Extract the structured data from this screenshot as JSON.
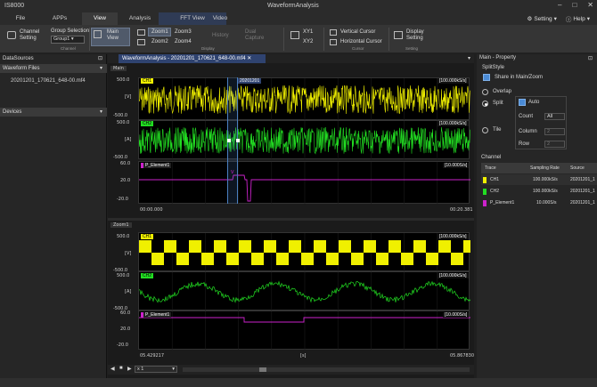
{
  "window": {
    "app_title": "IS8000",
    "title": "WaveformAnalysis"
  },
  "menu": {
    "tabs": [
      "File",
      "APPs",
      "View",
      "Analysis",
      "FFT View",
      "Video"
    ],
    "active": "View",
    "right": {
      "setting": "Setting",
      "help": "Help"
    }
  },
  "ribbon": {
    "channel_setting": "Channel Setting",
    "group_selection": "Group Selection",
    "group_value": "Group1",
    "main_view": "Main View",
    "zoom1": "Zoom1",
    "zoom2": "Zoom2",
    "zoom3": "Zoom3",
    "zoom4": "Zoom4",
    "history": "History",
    "dual_capture": "Dual Capture",
    "xy1": "XY1",
    "xy2": "XY2",
    "vertical_cursor": "Vertical Cursor",
    "horizontal_cursor": "Horizontal Cursor",
    "display_setting": "Display Setting",
    "groups": {
      "channel": "Channel",
      "display": "Display",
      "cursor": "Cursor",
      "setting": "Setting"
    }
  },
  "left_panel": {
    "title": "DataSources",
    "waveform_files_label": "Waveform Files",
    "file": "20201201_170621_648-00.mf4",
    "devices_label": "Devices"
  },
  "document_tab": "WaveformAnalysis - 20201201_170621_648-00.mf4",
  "main_view": {
    "label": "Main",
    "ch1": {
      "name": "CH1",
      "top": "500.0",
      "unit": "[V]",
      "bottom": "-500.0",
      "rate": "[100.000kS/s]",
      "cursor_tag": "20201201"
    },
    "ch2": {
      "name": "CH2",
      "top": "500.0",
      "unit": "[A]",
      "bottom": "-500.0",
      "rate": "[100.000kS/s]"
    },
    "p1": {
      "name": "P_Element1",
      "top": "60.0",
      "mid": "20.0",
      "bottom": "-20.0",
      "rate": "[10.000S/s]",
      "marker": "V"
    },
    "time_start": "00:00.000",
    "time_end": "00:20.381"
  },
  "zoom_view": {
    "label": "Zoom1",
    "ch1": {
      "name": "CH1",
      "top": "500.0",
      "unit": "[V]",
      "bottom": "-500.0",
      "rate": "[100.000kS/s]"
    },
    "ch2": {
      "name": "CH2",
      "top": "500.0",
      "unit": "[A]",
      "bottom": "-500.0",
      "rate": "[100.000kS/s]"
    },
    "p1": {
      "name": "P_Element1",
      "top": "60.0",
      "mid": "20.0",
      "bottom": "-20.0",
      "rate": "[10.000S/s]"
    },
    "time_start": "05.429217",
    "time_unit": "[s]",
    "time_end": "05.867830"
  },
  "bottom_bar": {
    "zoom_factor": "x 1"
  },
  "right_panel": {
    "title": "Main - Property",
    "split_style": "SplitStyle",
    "share_label": "Share in Main/Zoom",
    "overlap": "Overlap",
    "split": "Split",
    "auto": "Auto",
    "count_label": "Count",
    "count_value": "All",
    "column_label": "Column",
    "column_value": "2",
    "row_label": "Row",
    "row_value": "2",
    "tile": "Tile",
    "channel_section": "Channel",
    "table_headers": [
      "Trace",
      "Sampling Rate",
      "Source"
    ],
    "rows": [
      {
        "trace": "CH1",
        "rate": "100.000kS/s",
        "source": "20201201_1",
        "color": "#f0f000"
      },
      {
        "trace": "CH2",
        "rate": "100.000kS/s",
        "source": "20201201_1",
        "color": "#22dd22"
      },
      {
        "trace": "P_Element1",
        "rate": "10.000S/s",
        "source": "20201201_1",
        "color": "#cc22cc"
      }
    ]
  },
  "colors": {
    "ch1": "#f0f000",
    "ch2": "#22dd22",
    "p1": "#cc22cc",
    "accent": "#2f4370"
  }
}
